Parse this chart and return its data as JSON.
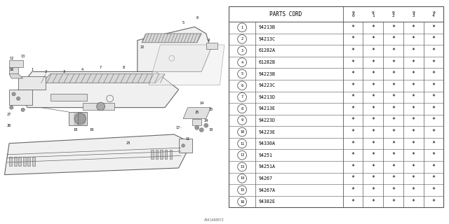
{
  "bg_color": "#ffffff",
  "table_header": "PARTS CORD",
  "col_headers": [
    "9\n0",
    "9\n1",
    "9\n2",
    "9\n3",
    "9\n4"
  ],
  "rows": [
    {
      "num": 1,
      "part": "94213B"
    },
    {
      "num": 2,
      "part": "94213C"
    },
    {
      "num": 3,
      "part": "61282A"
    },
    {
      "num": 4,
      "part": "61282B"
    },
    {
      "num": 5,
      "part": "94223B"
    },
    {
      "num": 6,
      "part": "94223C"
    },
    {
      "num": 7,
      "part": "94213D"
    },
    {
      "num": 8,
      "part": "94213E"
    },
    {
      "num": 9,
      "part": "94223D"
    },
    {
      "num": 10,
      "part": "94223E"
    },
    {
      "num": 11,
      "part": "94330A"
    },
    {
      "num": 12,
      "part": "94251"
    },
    {
      "num": 13,
      "part": "94251A"
    },
    {
      "num": 14,
      "part": "94267"
    },
    {
      "num": 15,
      "part": "94267A"
    },
    {
      "num": 16,
      "part": "94382E"
    }
  ],
  "watermark": "A941A00072",
  "lc": "#666666",
  "tc": "#000000"
}
